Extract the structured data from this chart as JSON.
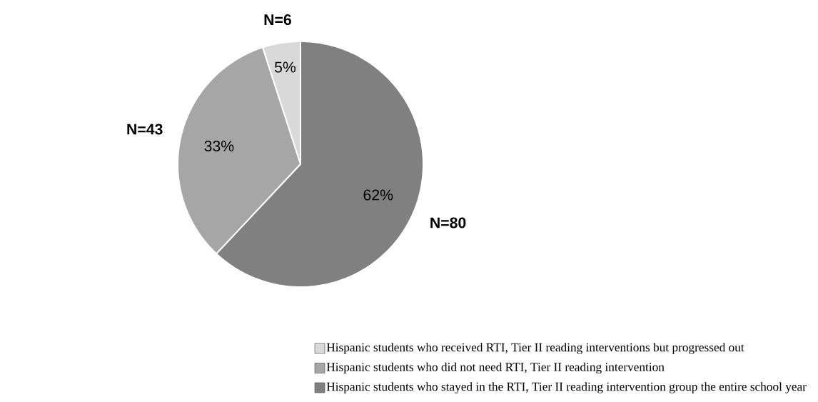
{
  "chart_data": {
    "type": "pie",
    "categories": [
      "Hispanic students who received RTI, Tier II reading interventions but progressed out",
      "Hispanic students who did not need RTI, Tier II reading intervention",
      "Hispanic students who stayed in the RTI, Tier II reading intervention group the entire school year"
    ],
    "values": [
      5,
      33,
      62
    ],
    "colors": [
      "#d9d9d9",
      "#a6a6a6",
      "#808080"
    ],
    "value_labels": [
      "5%",
      "33%",
      "62%"
    ],
    "annotations": [
      "N=6",
      "N=43",
      "N=80"
    ],
    "legend": "bottom"
  }
}
